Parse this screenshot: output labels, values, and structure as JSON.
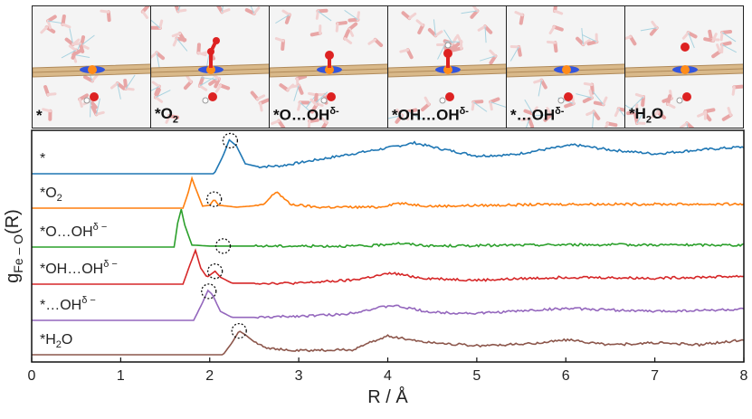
{
  "panels": [
    {
      "label_main": "*",
      "label_sub": "",
      "label_sup": "",
      "species": "empty"
    },
    {
      "label_main": "*O",
      "label_sub": "2",
      "label_sup": "",
      "species": "o2"
    },
    {
      "label_main": "*O…OH",
      "label_sub": "",
      "label_sup": "δ-",
      "species": "o"
    },
    {
      "label_main": "*OH…OH",
      "label_sub": "",
      "label_sup": "δ-",
      "species": "oh"
    },
    {
      "label_main": "*…OH",
      "label_sub": "",
      "label_sup": "δ-",
      "species": "empty2"
    },
    {
      "label_main": "*H",
      "label_sub": "2",
      "label_sup": "O",
      "species": "h2o"
    }
  ],
  "chart_data": {
    "type": "line",
    "xlabel": "R / Å",
    "ylabel_main": "g",
    "ylabel_sub": "Fe – O",
    "ylabel_tail": "(R)",
    "xlim": [
      0,
      8
    ],
    "x_ticks": [
      "0",
      "1",
      "2",
      "3",
      "4",
      "5",
      "6",
      "7",
      "8"
    ],
    "series": [
      {
        "name": "*",
        "label_main": "*",
        "label_sub": "",
        "label_sup": "",
        "color": "#1f77b4",
        "points": [
          [
            0,
            0
          ],
          [
            2.05,
            0
          ],
          [
            2.15,
            0.9
          ],
          [
            2.22,
            1.7
          ],
          [
            2.3,
            1.4
          ],
          [
            2.4,
            0.5
          ],
          [
            2.55,
            0.35
          ],
          [
            2.8,
            0.4
          ],
          [
            3.2,
            0.7
          ],
          [
            3.6,
            1.0
          ],
          [
            4.0,
            1.3
          ],
          [
            4.3,
            1.55
          ],
          [
            4.6,
            1.25
          ],
          [
            5.0,
            0.9
          ],
          [
            5.4,
            0.95
          ],
          [
            5.8,
            1.25
          ],
          [
            6.1,
            1.45
          ],
          [
            6.5,
            1.2
          ],
          [
            7.0,
            1.0
          ],
          [
            7.5,
            1.2
          ],
          [
            8.0,
            1.35
          ]
        ],
        "marker_x": 2.23
      },
      {
        "name": "*O2",
        "label_main": "*O",
        "label_sub": "2",
        "label_sup": "",
        "color": "#ff7f0e",
        "points": [
          [
            0,
            0
          ],
          [
            1.7,
            0
          ],
          [
            1.76,
            0.8
          ],
          [
            1.8,
            1.5
          ],
          [
            1.85,
            0.9
          ],
          [
            1.92,
            0.1
          ],
          [
            2.0,
            0.15
          ],
          [
            2.05,
            0.45
          ],
          [
            2.1,
            0.15
          ],
          [
            2.3,
            0.05
          ],
          [
            2.6,
            0.15
          ],
          [
            2.75,
            0.85
          ],
          [
            2.9,
            0.2
          ],
          [
            3.2,
            0.05
          ],
          [
            3.9,
            0.05
          ],
          [
            4.1,
            0.25
          ],
          [
            4.5,
            0.1
          ],
          [
            6.0,
            0.2
          ],
          [
            8.0,
            0.2
          ]
        ],
        "marker_x": 2.05
      },
      {
        "name": "*O…OHδ−",
        "label_main": "*O…OH",
        "label_sub": "",
        "label_sup": "δ −",
        "color": "#2ca02c",
        "points": [
          [
            0,
            0
          ],
          [
            1.6,
            0
          ],
          [
            1.64,
            1.2
          ],
          [
            1.68,
            1.9
          ],
          [
            1.72,
            1.1
          ],
          [
            1.8,
            0.1
          ],
          [
            2.0,
            0.05
          ],
          [
            2.2,
            0.05
          ],
          [
            3.0,
            0.05
          ],
          [
            3.8,
            0.05
          ],
          [
            4.1,
            0.2
          ],
          [
            4.5,
            0.05
          ],
          [
            6.0,
            0.12
          ],
          [
            8.0,
            0.1
          ]
        ],
        "marker_x": 2.15
      },
      {
        "name": "*OH…OHδ−",
        "label_main": "*OH…OH",
        "label_sub": "",
        "label_sup": "δ −",
        "color": "#d62728",
        "points": [
          [
            0,
            0
          ],
          [
            1.7,
            0
          ],
          [
            1.78,
            1.0
          ],
          [
            1.84,
            1.7
          ],
          [
            1.9,
            0.8
          ],
          [
            1.97,
            0.35
          ],
          [
            2.06,
            0.65
          ],
          [
            2.12,
            0.35
          ],
          [
            2.25,
            0.05
          ],
          [
            3.0,
            0.05
          ],
          [
            3.6,
            0.2
          ],
          [
            4.05,
            0.55
          ],
          [
            4.4,
            0.3
          ],
          [
            5.0,
            0.2
          ],
          [
            6.0,
            0.35
          ],
          [
            7.0,
            0.3
          ],
          [
            8.0,
            0.4
          ]
        ],
        "marker_x": 2.06
      },
      {
        "name": "*…OHδ−",
        "label_main": "*…OH",
        "label_sub": "",
        "label_sup": "δ −",
        "color": "#9467bd",
        "points": [
          [
            0,
            0
          ],
          [
            1.82,
            0
          ],
          [
            1.92,
            0.9
          ],
          [
            1.98,
            1.5
          ],
          [
            2.03,
            1.3
          ],
          [
            2.12,
            0.45
          ],
          [
            2.25,
            0.15
          ],
          [
            2.6,
            0.15
          ],
          [
            3.5,
            0.3
          ],
          [
            4.05,
            0.75
          ],
          [
            4.5,
            0.4
          ],
          [
            5.0,
            0.35
          ],
          [
            6.0,
            0.6
          ],
          [
            7.0,
            0.45
          ],
          [
            8.0,
            0.55
          ]
        ],
        "marker_x": 1.99
      },
      {
        "name": "*H2O",
        "label_main": "*H",
        "label_sub": "2",
        "label_sup": "O",
        "color": "#8c564b",
        "points": [
          [
            0,
            0
          ],
          [
            2.15,
            0
          ],
          [
            2.25,
            0.6
          ],
          [
            2.33,
            1.2
          ],
          [
            2.4,
            1.0
          ],
          [
            2.5,
            0.65
          ],
          [
            2.65,
            0.35
          ],
          [
            2.9,
            0.2
          ],
          [
            3.6,
            0.25
          ],
          [
            4.0,
            0.95
          ],
          [
            4.4,
            0.65
          ],
          [
            5.0,
            0.45
          ],
          [
            5.6,
            0.55
          ],
          [
            6.0,
            0.75
          ],
          [
            6.5,
            0.5
          ],
          [
            7.0,
            0.6
          ],
          [
            7.5,
            0.5
          ],
          [
            8.0,
            0.75
          ]
        ],
        "marker_x": 2.33
      }
    ]
  }
}
